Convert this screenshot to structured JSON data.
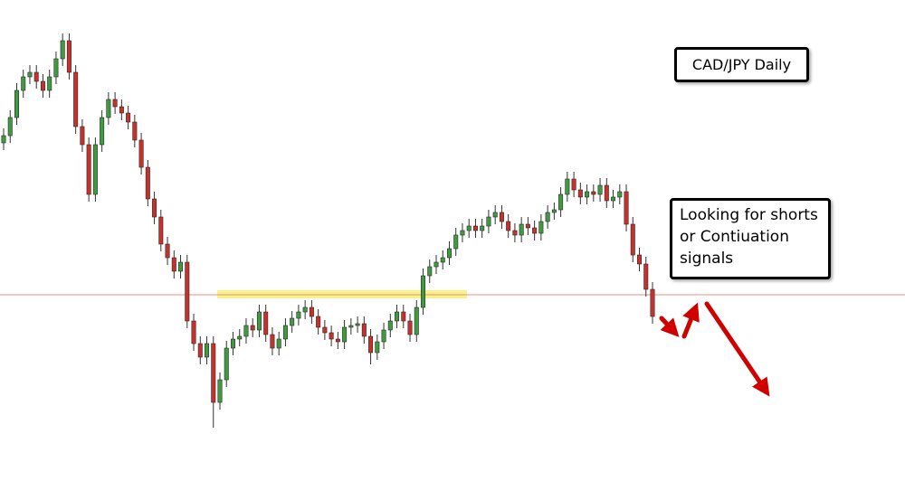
{
  "chart_data": {
    "type": "candlestick",
    "title": "CAD/JPY Daily",
    "annotation": "Looking for shorts or Contiuation signals",
    "ylim": [
      0,
      553
    ],
    "up_color": "#3f9b3f",
    "down_color": "#c8312b",
    "level": {
      "value": 227,
      "color": "#f08a8a"
    },
    "open": [
      395,
      403,
      423,
      453,
      468,
      473,
      463,
      453,
      468,
      488,
      508,
      473,
      413,
      393,
      338,
      393,
      423,
      443,
      435,
      428,
      418,
      398,
      368,
      333,
      313,
      283,
      268,
      253,
      263,
      198,
      173,
      158,
      173,
      108,
      133,
      168,
      178,
      181,
      193,
      188,
      208,
      183,
      168,
      178,
      193,
      201,
      208,
      213,
      203,
      191,
      185,
      178,
      175,
      191,
      193,
      195,
      181,
      163,
      175,
      188,
      198,
      208,
      198,
      183,
      213,
      248,
      258,
      263,
      268,
      278,
      293,
      298,
      303,
      298,
      303,
      313,
      318,
      308,
      298,
      293,
      305,
      301,
      295,
      308,
      318,
      321,
      338,
      355,
      343,
      335,
      341,
      338,
      348,
      331,
      335,
      341,
      305,
      271,
      261,
      233
    ],
    "high": [
      411,
      431,
      461,
      476,
      481,
      481,
      471,
      476,
      496,
      516,
      516,
      481,
      421,
      401,
      401,
      431,
      451,
      451,
      443,
      436,
      426,
      406,
      376,
      341,
      321,
      291,
      276,
      271,
      271,
      206,
      181,
      181,
      181,
      141,
      176,
      186,
      189,
      201,
      201,
      216,
      216,
      191,
      186,
      201,
      209,
      216,
      221,
      221,
      211,
      199,
      193,
      186,
      199,
      201,
      203,
      203,
      189,
      183,
      196,
      206,
      216,
      216,
      206,
      221,
      256,
      266,
      271,
      276,
      286,
      301,
      306,
      311,
      311,
      311,
      321,
      326,
      326,
      316,
      306,
      313,
      313,
      309,
      316,
      326,
      329,
      346,
      363,
      363,
      351,
      349,
      349,
      356,
      356,
      343,
      349,
      349,
      313,
      279,
      269,
      241
    ],
    "low": [
      387,
      395,
      415,
      445,
      460,
      455,
      445,
      445,
      460,
      480,
      465,
      405,
      385,
      330,
      330,
      385,
      415,
      427,
      420,
      410,
      390,
      360,
      325,
      305,
      275,
      260,
      245,
      245,
      190,
      165,
      150,
      150,
      80,
      100,
      125,
      160,
      170,
      173,
      180,
      180,
      175,
      160,
      160,
      170,
      185,
      193,
      200,
      195,
      183,
      177,
      170,
      167,
      167,
      183,
      185,
      173,
      150,
      155,
      167,
      180,
      190,
      190,
      175,
      175,
      205,
      240,
      250,
      255,
      260,
      270,
      285,
      290,
      290,
      290,
      295,
      305,
      300,
      290,
      285,
      285,
      293,
      287,
      287,
      300,
      310,
      313,
      330,
      335,
      327,
      327,
      330,
      330,
      323,
      323,
      327,
      297,
      263,
      253,
      225,
      195
    ],
    "close": [
      403,
      423,
      453,
      468,
      473,
      463,
      453,
      468,
      488,
      508,
      473,
      413,
      393,
      338,
      393,
      423,
      443,
      435,
      428,
      418,
      398,
      368,
      333,
      313,
      283,
      268,
      253,
      263,
      198,
      173,
      158,
      173,
      108,
      133,
      168,
      178,
      181,
      193,
      188,
      208,
      183,
      168,
      178,
      193,
      201,
      208,
      213,
      203,
      191,
      185,
      178,
      175,
      191,
      193,
      195,
      181,
      163,
      175,
      188,
      198,
      208,
      198,
      183,
      213,
      248,
      258,
      263,
      268,
      278,
      293,
      298,
      303,
      298,
      303,
      313,
      318,
      308,
      298,
      293,
      305,
      301,
      295,
      308,
      318,
      321,
      338,
      355,
      343,
      335,
      341,
      338,
      348,
      331,
      335,
      341,
      305,
      271,
      261,
      233,
      203
    ]
  }
}
